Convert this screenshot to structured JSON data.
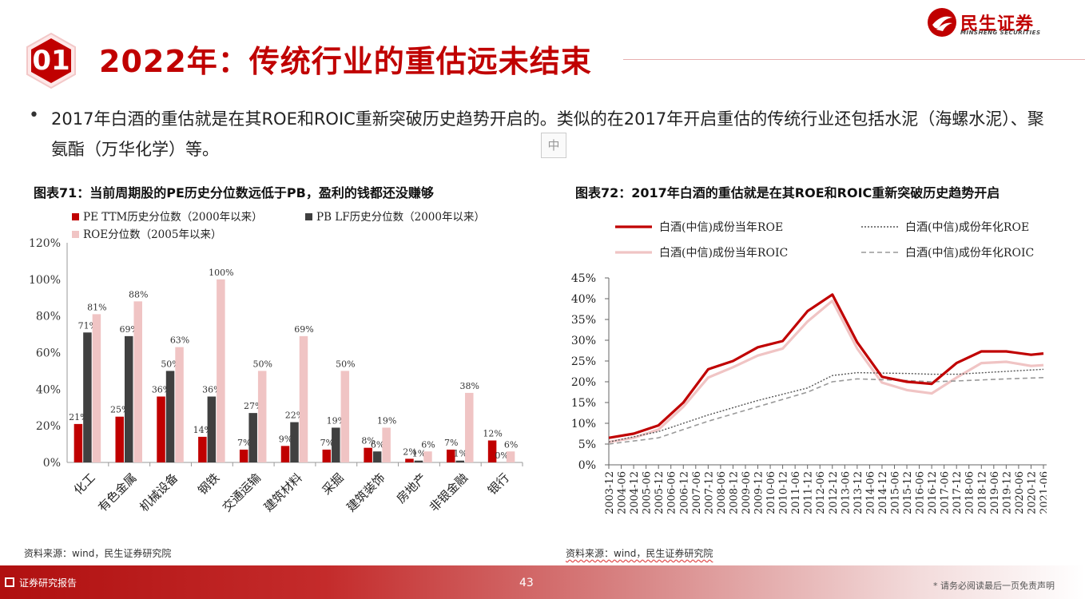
{
  "header": {
    "section_number": "01",
    "title": "2022年：传统行业的重估远未结束",
    "logo_cn": "民生证券",
    "logo_en": "MINSHENG SECURITIES"
  },
  "bullet_text": "2017年白酒的重估就是在其ROE和ROIC重新突破历史趋势开启的。类似的在2017年开启重估的传统行业还包括水泥（海螺水泥）、聚氨酯（万华化学）等。",
  "ime_label": "中",
  "left_chart_title": "图表71：当前周期股的PE历史分位数远低于PB，盈利的钱都还没赚够",
  "right_chart_title": "图表72：2017年白酒的重估就是在其ROE和ROIC重新突破历史趋势开启",
  "left_source": "资料来源：wind，民生证券研究院",
  "right_source": "资料来源：wind，民生证券研究院",
  "footer": {
    "left": "证券研究报告",
    "page": "43",
    "right": "* 请务必阅读最后一页免责声明"
  },
  "colors": {
    "accent": "#c00000",
    "pe": "#c00000",
    "pb": "#404040",
    "roe": "#f0c4c4"
  },
  "chart_data": [
    {
      "type": "bar",
      "categories": [
        "化工",
        "有色金属",
        "机械设备",
        "钢铁",
        "交通运输",
        "建筑材料",
        "采掘",
        "建筑装饰",
        "房地产",
        "非银金融",
        "银行"
      ],
      "series": [
        {
          "name": "PE TTM历史分位数（2000年以来）",
          "values": [
            21,
            25,
            36,
            14,
            7,
            9,
            7,
            8,
            2,
            7,
            12
          ],
          "labels": [
            "21%",
            "25%",
            "36%",
            "14%",
            "7%",
            "9%",
            "7%",
            "8%",
            "2%",
            "7%",
            "12%"
          ]
        },
        {
          "name": "PB LF历史分位数（2000年以来）",
          "values": [
            71,
            69,
            50,
            36,
            27,
            22,
            19,
            6,
            1,
            1,
            0
          ],
          "labels": [
            "71%",
            "69%",
            "50%",
            "36%",
            "27%",
            "22%",
            "19%",
            "6%",
            "1%",
            "1%",
            "0%"
          ]
        },
        {
          "name": "ROE分位数（2005年以来）",
          "values": [
            81,
            88,
            63,
            100,
            50,
            69,
            50,
            19,
            6,
            38,
            6
          ],
          "labels": [
            "81%",
            "88%",
            "63%",
            "100%",
            "50%",
            "69%",
            "50%",
            "19%",
            "6%",
            "38%",
            "6%"
          ]
        }
      ],
      "ylim": [
        0,
        120
      ],
      "yticks": [
        "0%",
        "20%",
        "40%",
        "60%",
        "80%",
        "100%",
        "120%"
      ],
      "legend": "top-left"
    },
    {
      "type": "line",
      "x": [
        "2003-12",
        "2004-12",
        "2005-12",
        "2006-06",
        "2006-12",
        "2007-06",
        "2008-06",
        "2009-06",
        "2010-06",
        "2010-12",
        "2011-12",
        "2012-12",
        "2013-06",
        "2014-12",
        "2015-12",
        "2016-06",
        "2016-12",
        "2017-06",
        "2018-06",
        "2019-06",
        "2020-12",
        "2021-06"
      ],
      "x_ticks": [
        "2003-12",
        "2004-06",
        "2004-12",
        "2005-06",
        "2005-12",
        "2006-06",
        "2006-12",
        "2007-06",
        "2007-12",
        "2008-06",
        "2008-12",
        "2009-06",
        "2009-12",
        "2010-06",
        "2010-12",
        "2011-06",
        "2011-12",
        "2012-06",
        "2012-12",
        "2013-06",
        "2013-12",
        "2014-06",
        "2014-12",
        "2015-06",
        "2015-12",
        "2016-06",
        "2016-12",
        "2017-06",
        "2017-12",
        "2018-06",
        "2018-12",
        "2019-06",
        "2019-12",
        "2020-06",
        "2020-12",
        "2021-06"
      ],
      "series": [
        {
          "name": "白酒(中信)成份当年ROE",
          "style": "solid-dark",
          "points": [
            [
              0,
              6.5
            ],
            [
              2,
              7.5
            ],
            [
              4,
              9.5
            ],
            [
              6,
              15
            ],
            [
              8,
              23
            ],
            [
              10,
              25
            ],
            [
              12,
              28.3
            ],
            [
              14,
              29.8
            ],
            [
              16,
              37
            ],
            [
              18,
              41
            ],
            [
              20,
              29.5
            ],
            [
              22,
              21.2
            ],
            [
              24,
              20
            ],
            [
              26,
              19.5
            ],
            [
              28,
              24.5
            ],
            [
              30,
              27.3
            ],
            [
              32,
              27.3
            ],
            [
              34,
              26.5
            ],
            [
              35,
              26.8
            ]
          ]
        },
        {
          "name": "白酒(中信)成份年化ROE",
          "style": "dotted",
          "points": [
            [
              0,
              5.5
            ],
            [
              4,
              8
            ],
            [
              8,
              12
            ],
            [
              12,
              15.5
            ],
            [
              16,
              18.5
            ],
            [
              18,
              21.5
            ],
            [
              20,
              22.2
            ],
            [
              24,
              22
            ],
            [
              26,
              21.8
            ],
            [
              28,
              21.8
            ],
            [
              32,
              22.5
            ],
            [
              35,
              23
            ]
          ]
        },
        {
          "name": "白酒(中信)成份当年ROIC",
          "style": "solid-light",
          "points": [
            [
              0,
              5.5
            ],
            [
              2,
              6.5
            ],
            [
              4,
              8.5
            ],
            [
              6,
              14
            ],
            [
              8,
              21
            ],
            [
              10,
              23.5
            ],
            [
              12,
              26.3
            ],
            [
              14,
              28
            ],
            [
              16,
              34.5
            ],
            [
              18,
              39.5
            ],
            [
              20,
              28
            ],
            [
              22,
              19.8
            ],
            [
              24,
              18
            ],
            [
              26,
              17.2
            ],
            [
              28,
              21
            ],
            [
              30,
              24.5
            ],
            [
              32,
              24.8
            ],
            [
              34,
              23.8
            ],
            [
              35,
              24
            ]
          ]
        },
        {
          "name": "白酒(中信)成份年化ROIC",
          "style": "dashed",
          "points": [
            [
              0,
              5
            ],
            [
              4,
              6.5
            ],
            [
              8,
              10.5
            ],
            [
              12,
              14
            ],
            [
              16,
              17.5
            ],
            [
              18,
              20
            ],
            [
              20,
              20.7
            ],
            [
              24,
              20.3
            ],
            [
              26,
              20
            ],
            [
              28,
              20.2
            ],
            [
              32,
              20.7
            ],
            [
              35,
              21
            ]
          ]
        }
      ],
      "ylim": [
        0,
        45
      ],
      "yticks": [
        "0%",
        "5%",
        "10%",
        "15%",
        "20%",
        "25%",
        "30%",
        "35%",
        "40%",
        "45%"
      ],
      "legend": "top"
    }
  ]
}
